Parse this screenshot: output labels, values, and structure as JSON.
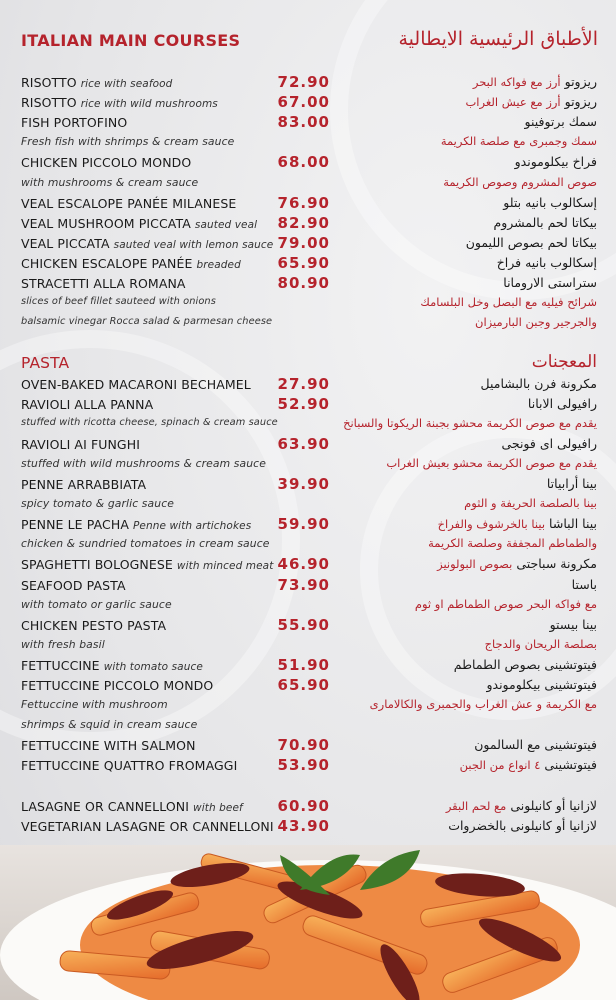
{
  "title": {
    "en": "ITALIAN MAIN COURSES",
    "ar": "الأطباق الرئيسية الايطالية"
  },
  "accent_color": "#b5232c",
  "rows": [
    {
      "type": "item",
      "en": "RISOTTO",
      "note": "rice with seafood",
      "price": "72.90",
      "ar": "ريزوتو",
      "ar_note": "أرز مع فواكه البحر"
    },
    {
      "type": "item",
      "en": "RISOTTO",
      "note": "rice with wild mushrooms",
      "price": "67.00",
      "ar": "ريزوتو",
      "ar_note": "أرز مع عيش الغراب"
    },
    {
      "type": "item",
      "en": "FISH PORTOFINO",
      "price": "83.00",
      "ar": "سمك برتوفينو"
    },
    {
      "type": "desc",
      "en": "Fresh fish with shrimps & cream sauce",
      "ar": "سمك وجمبرى مع صلصة الكريمة"
    },
    {
      "type": "item",
      "en": "CHICKEN PICCOLO MONDO",
      "price": "68.00",
      "ar": "فراخ بيكلوموندو"
    },
    {
      "type": "desc",
      "en": "with mushrooms & cream sauce",
      "ar": "صوص المشروم وصوص الكريمة"
    },
    {
      "type": "item",
      "en": "VEAL ESCALOPE PANÉE MILANESE",
      "price": "76.90",
      "ar": "إسكالوب بانيه بتلو"
    },
    {
      "type": "item",
      "en": "VEAL MUSHROOM PICCATA",
      "note": "sauted veal",
      "price": "82.90",
      "ar": "بيكاتا لحم بالمشروم"
    },
    {
      "type": "item",
      "en": "VEAL PICCATA",
      "note": "sauted veal with lemon sauce",
      "price": "79.00",
      "ar": "بيكاتا لحم بصوص الليمون"
    },
    {
      "type": "item",
      "en": "CHICKEN ESCALOPE PANÉE",
      "note": "breaded",
      "price": "65.90",
      "ar": "إسكالوب بانيه فراخ"
    },
    {
      "type": "item",
      "en": "STRACETTI ALLA ROMANA",
      "price": "80.90",
      "ar": "ستراستى الارومانا"
    },
    {
      "type": "desc",
      "small": true,
      "en": "slices of beef fillet sauteed with onions",
      "ar": "شرائح فيليه مع البصل وخل البلسامك"
    },
    {
      "type": "desc",
      "small": true,
      "en": "balsamic vinegar Rocca salad & parmesan cheese",
      "ar": "والجرجير وجبن البارميزان"
    },
    {
      "type": "gap"
    },
    {
      "type": "header",
      "en": "PASTA",
      "ar": "المعجنات"
    },
    {
      "type": "item",
      "en": "OVEN-BAKED MACARONI BECHAMEL",
      "price": "27.90",
      "ar": "مكرونة فرن بالبشاميل"
    },
    {
      "type": "item",
      "en": "RAVIOLI ALLA PANNA",
      "price": "52.90",
      "ar": "رافيولى الابانا"
    },
    {
      "type": "desc",
      "small": true,
      "en": "stuffed with ricotta cheese, spinach & cream sauce",
      "ar": "يقدم مع صوص الكريمة محشو بجبنة الريكوتا والسبانخ"
    },
    {
      "type": "item",
      "en": "RAVIOLI AI FUNGHI",
      "price": "63.90",
      "ar": "رافيولى اى فونجى"
    },
    {
      "type": "desc",
      "en": "stuffed with wild mushrooms & cream sauce",
      "ar": "يقدم مع صوص الكريمة محشو بعيش الغراب"
    },
    {
      "type": "item",
      "en": "PENNE ARRABBIATA",
      "price": "39.90",
      "ar": "بينا أرابياتا"
    },
    {
      "type": "desc",
      "en": "spicy tomato & garlic sauce",
      "ar": "بينا بالصلصة الحريفة و الثوم"
    },
    {
      "type": "item",
      "en": "PENNE LE PACHA",
      "note": "Penne with artichokes",
      "price": "59.90",
      "ar": "بينا الباشا",
      "ar_note": "بينا بالخرشوف والفراخ"
    },
    {
      "type": "desc",
      "en": "chicken & sundried tomatoes in cream sauce",
      "ar": "والطماطم المجففة وصلصة الكريمة"
    },
    {
      "type": "item",
      "en": "SPAGHETTI BOLOGNESE",
      "note": "with minced meat",
      "price": "46.90",
      "ar": "مكرونة سباجتى",
      "ar_note": "بصوص البولونيز"
    },
    {
      "type": "item",
      "en": "SEAFOOD PASTA",
      "price": "73.90",
      "ar": "باستا"
    },
    {
      "type": "desc",
      "en": "with tomato or garlic sauce",
      "ar": "مع فواكه البحر  صوص الطماطم او ثوم"
    },
    {
      "type": "item",
      "en": "CHICKEN PESTO PASTA",
      "price": "55.90",
      "ar": "بينا بيستو"
    },
    {
      "type": "desc",
      "en": "with fresh basil",
      "ar": "بصلصة الريحان والدجاج"
    },
    {
      "type": "item",
      "en": "FETTUCCINE",
      "note": "with tomato sauce",
      "price": "51.90",
      "ar": "فيتوتشينى بصوص الطماطم"
    },
    {
      "type": "item",
      "en": "FETTUCCINE PICCOLO MONDO",
      "price": "65.90",
      "ar": "فيتوتشينى بيكلوموندو"
    },
    {
      "type": "desc",
      "en": "Fettuccine with mushroom",
      "ar": "مع الكريمة و عش الغراب والجمبرى والكالامارى"
    },
    {
      "type": "desc",
      "en": " shrimps & squid in cream sauce"
    },
    {
      "type": "item",
      "en": "FETTUCCINE WITH SALMON",
      "price": "70.90",
      "ar": "فيتوتشينى مع السالمون"
    },
    {
      "type": "item",
      "en": "FETTUCCINE QUATTRO FROMAGGI",
      "price": "53.90",
      "ar": "فيتوتشينى",
      "ar_note": "٤ انواع من الجبن"
    },
    {
      "type": "gap"
    },
    {
      "type": "item",
      "en": "LASAGNE OR CANNELLONI",
      "note": "with beef",
      "price": "60.90",
      "ar": "لازانيا  أو كانيلونى",
      "ar_note": "مع لحم البقر"
    },
    {
      "type": "item",
      "en": "VEGETARIAN LASAGNE OR CANNELLONI",
      "price": "43.90",
      "ar": "لازانيا أو كانيلونى بالخضروات"
    }
  ]
}
